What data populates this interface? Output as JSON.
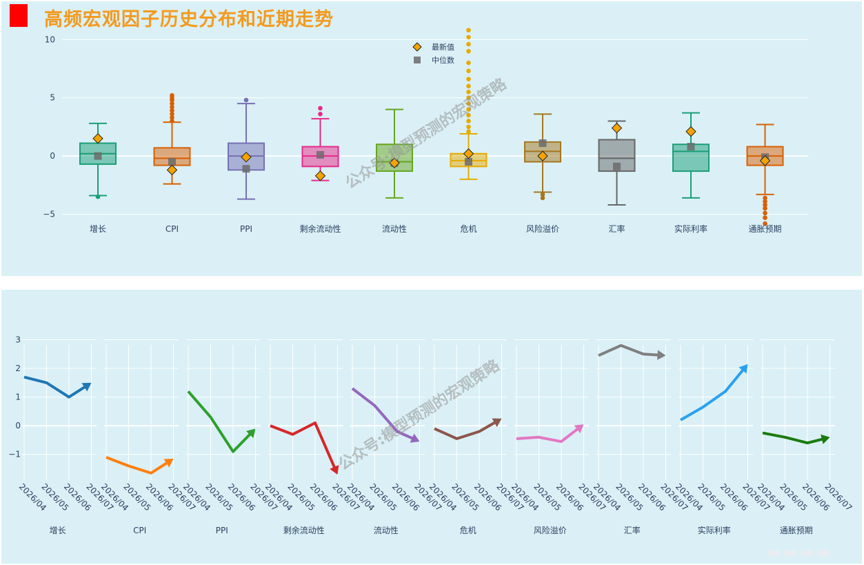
{
  "title": "高频宏观因子历史分布和近期走势",
  "watermark": "公众号:模型预测的宏观策略",
  "chart_data": [
    {
      "type": "box",
      "legend": {
        "latest": "最新值",
        "median": "中位数",
        "placement": "top-center"
      },
      "y_ticks": [
        10,
        5,
        0,
        -5
      ],
      "ylim": [
        -7.1,
        11.2
      ],
      "boxes": [
        {
          "name": "增长",
          "color": "#1b9e77",
          "q1": -0.7,
          "q3": 1.1,
          "med": 0.2,
          "lo": -3.4,
          "hi": 2.8,
          "median_marker": 0.0,
          "latest": 1.5,
          "outliers": [
            -3.5
          ]
        },
        {
          "name": "CPI",
          "color": "#d95f02",
          "q1": -0.8,
          "q3": 0.7,
          "med": -0.2,
          "lo": -2.4,
          "hi": 2.9,
          "median_marker": -0.5,
          "latest": -1.2,
          "outliers": [
            3.0,
            3.3,
            3.6,
            3.9,
            4.2,
            4.5,
            4.8,
            5.0,
            5.2
          ]
        },
        {
          "name": "PPI",
          "color": "#7570b3",
          "q1": -1.2,
          "q3": 1.1,
          "med": 0.0,
          "lo": -3.7,
          "hi": 4.5,
          "median_marker": -1.1,
          "latest": -0.1,
          "outliers": [
            4.8
          ]
        },
        {
          "name": "剩余流动性",
          "color": "#e7298a",
          "q1": -0.9,
          "q3": 0.8,
          "med": 0.0,
          "lo": -2.1,
          "hi": 3.2,
          "median_marker": 0.1,
          "latest": -1.7,
          "outliers": [
            3.6,
            4.1
          ]
        },
        {
          "name": "流动性",
          "color": "#66a61e",
          "q1": -1.3,
          "q3": 1.0,
          "med": -0.5,
          "lo": -3.6,
          "hi": 4.0,
          "median_marker": -0.6,
          "latest": -0.6,
          "outliers": []
        },
        {
          "name": "危机",
          "color": "#e6ab02",
          "q1": -0.9,
          "q3": 0.2,
          "med": -0.4,
          "lo": -2.0,
          "hi": 1.9,
          "median_marker": -0.5,
          "latest": 0.2,
          "outliers": [
            2.1,
            2.5,
            3.0,
            3.5,
            4.0,
            4.5,
            5.0,
            5.5,
            6.0,
            6.6,
            7.3,
            8.0,
            9.0,
            9.6,
            10.2,
            10.8
          ]
        },
        {
          "name": "风险溢价",
          "color": "#a6761d",
          "q1": -0.5,
          "q3": 1.2,
          "med": 0.4,
          "lo": -3.1,
          "hi": 3.6,
          "median_marker": 1.1,
          "latest": 0.0,
          "outliers": [
            -3.3,
            -3.6
          ]
        },
        {
          "name": "汇率",
          "color": "#666666",
          "q1": -1.3,
          "q3": 1.4,
          "med": -0.2,
          "lo": -4.2,
          "hi": 3.0,
          "median_marker": -0.9,
          "latest": 2.4,
          "outliers": []
        },
        {
          "name": "实际利率",
          "color": "#1b9e77",
          "q1": -1.3,
          "q3": 1.0,
          "med": 0.4,
          "lo": -3.6,
          "hi": 3.7,
          "median_marker": 0.8,
          "latest": 2.1,
          "outliers": []
        },
        {
          "name": "通胀预期",
          "color": "#d95f02",
          "q1": -0.8,
          "q3": 0.8,
          "med": 0.0,
          "lo": -3.3,
          "hi": 2.7,
          "median_marker": -0.1,
          "latest": -0.4,
          "outliers": [
            -3.6,
            -3.9,
            -4.2,
            -4.5,
            -4.9,
            -5.3,
            -5.8
          ]
        }
      ]
    },
    {
      "type": "line",
      "x": [
        "2026/04",
        "2026/05",
        "2026/06",
        "2026/07"
      ],
      "y_ticks": [
        3,
        2,
        1,
        0,
        -1
      ],
      "ylim": [
        -1.8,
        3.3
      ],
      "series": [
        {
          "name": "增长",
          "color": "#1f77b4",
          "values": [
            1.7,
            1.5,
            1.0,
            1.5
          ]
        },
        {
          "name": "CPI",
          "color": "#ff7f0e",
          "values": [
            -1.1,
            -1.4,
            -1.65,
            -1.15
          ]
        },
        {
          "name": "PPI",
          "color": "#2ca02c",
          "values": [
            1.2,
            0.3,
            -0.9,
            -0.1
          ]
        },
        {
          "name": "剩余流动性",
          "color": "#d62728",
          "values": [
            0.0,
            -0.3,
            0.1,
            -1.7
          ]
        },
        {
          "name": "流动性",
          "color": "#9467bd",
          "values": [
            1.3,
            0.7,
            -0.2,
            -0.55
          ]
        },
        {
          "name": "危机",
          "color": "#8c564b",
          "values": [
            -0.1,
            -0.45,
            -0.2,
            0.25
          ]
        },
        {
          "name": "风险溢价",
          "color": "#e377c2",
          "values": [
            -0.45,
            -0.4,
            -0.55,
            0.05
          ]
        },
        {
          "name": "汇率",
          "color": "#7f7f7f",
          "values": [
            2.45,
            2.8,
            2.5,
            2.45
          ]
        },
        {
          "name": "实际利率",
          "color": "#2aa1f0",
          "values": [
            0.2,
            0.65,
            1.2,
            2.15
          ]
        },
        {
          "name": "通胀预期",
          "color": "#1a7a0f",
          "values": [
            -0.25,
            -0.4,
            -0.6,
            -0.4
          ]
        }
      ]
    }
  ]
}
